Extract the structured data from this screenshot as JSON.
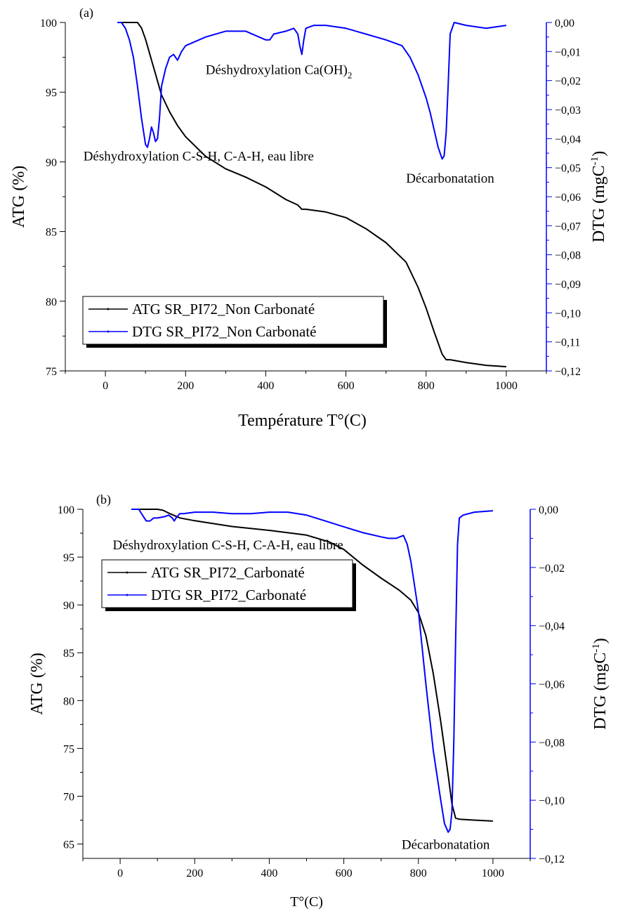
{
  "chart_data": [
    {
      "type": "line",
      "panel_label": "(a)",
      "xlabel": "Température T°(C)",
      "ylabel_left": "ATG (%)",
      "ylabel_right": "DTG (mgC",
      "ylabel_right_sup": "-1",
      "ylabel_right_close": ")",
      "xlim": [
        -100,
        1100
      ],
      "ylim_left": [
        75,
        100
      ],
      "ylim_right": [
        -0.12,
        0.0
      ],
      "xticks": [
        "0",
        "200",
        "400",
        "600",
        "800",
        "1000"
      ],
      "yticks_left": [
        "75",
        "80",
        "85",
        "90",
        "95",
        "100"
      ],
      "yticks_right": [
        "0,00",
        "-0,01",
        "-0,02",
        "-0,03",
        "-0,04",
        "-0,05",
        "-0,06",
        "-0,07",
        "-0,08",
        "-0,09",
        "-0,10",
        "-0,11",
        "-0,12"
      ],
      "legend": "bottom-left",
      "annotations": [
        {
          "text": "Déshydroxylation Ca(OH)",
          "sub": "2",
          "x": 250,
          "y": 96.3
        },
        {
          "text": "Déshydroxylation C-S-H, C-A-H, eau libre",
          "x": -55,
          "y": 90.1
        },
        {
          "text": "Décarbonatation",
          "x": 750,
          "y": 88.5
        }
      ],
      "series": [
        {
          "name": "ATG SR_PI72_Non Carbonaté",
          "axis": "left",
          "color": "#000000",
          "x": [
            30,
            80,
            90,
            100,
            120,
            140,
            160,
            180,
            200,
            250,
            300,
            350,
            400,
            450,
            480,
            490,
            500,
            550,
            600,
            650,
            700,
            750,
            780,
            800,
            820,
            840,
            850,
            860,
            900,
            950,
            1000
          ],
          "y": [
            100,
            100,
            99.6,
            98.8,
            96.8,
            94.8,
            93.6,
            92.6,
            91.8,
            90.4,
            89.5,
            88.9,
            88.2,
            87.3,
            86.9,
            86.6,
            86.6,
            86.4,
            86.0,
            85.2,
            84.2,
            82.8,
            81.0,
            79.5,
            77.8,
            76.2,
            75.8,
            75.8,
            75.6,
            75.4,
            75.3
          ]
        },
        {
          "name": "DTG SR_PI72_Non Carbonaté",
          "axis": "right",
          "color": "#0000ff",
          "x": [
            30,
            40,
            50,
            60,
            70,
            80,
            90,
            100,
            105,
            110,
            115,
            120,
            125,
            130,
            135,
            140,
            150,
            160,
            170,
            180,
            190,
            200,
            250,
            300,
            350,
            400,
            410,
            420,
            450,
            470,
            480,
            485,
            490,
            495,
            500,
            520,
            550,
            600,
            650,
            700,
            720,
            740,
            760,
            780,
            800,
            810,
            820,
            830,
            840,
            845,
            850,
            855,
            860,
            870,
            900,
            950,
            1000
          ],
          "y": [
            0.0,
            0.0,
            -0.002,
            -0.006,
            -0.012,
            -0.022,
            -0.033,
            -0.042,
            -0.043,
            -0.04,
            -0.036,
            -0.038,
            -0.041,
            -0.04,
            -0.033,
            -0.022,
            -0.016,
            -0.012,
            -0.011,
            -0.013,
            -0.01,
            -0.008,
            -0.005,
            -0.003,
            -0.003,
            -0.006,
            -0.006,
            -0.004,
            -0.003,
            -0.002,
            -0.004,
            -0.008,
            -0.011,
            -0.006,
            -0.002,
            -0.001,
            -0.001,
            -0.002,
            -0.004,
            -0.006,
            -0.007,
            -0.008,
            -0.012,
            -0.018,
            -0.026,
            -0.031,
            -0.037,
            -0.043,
            -0.047,
            -0.046,
            -0.038,
            -0.022,
            -0.004,
            0.0,
            -0.001,
            -0.002,
            -0.001
          ]
        }
      ]
    },
    {
      "type": "line",
      "panel_label": "(b)",
      "xlabel": "T°(C)",
      "ylabel_left": "ATG (%)",
      "ylabel_right": "DTG (mgC",
      "ylabel_right_sup": "-1",
      "ylabel_right_close": ")",
      "xlim": [
        -100,
        1100
      ],
      "ylim_left": [
        63.5,
        100
      ],
      "ylim_right": [
        -0.12,
        0.0
      ],
      "xticks": [
        "0",
        "200",
        "400",
        "600",
        "800",
        "1000"
      ],
      "yticks_left": [
        "65",
        "70",
        "75",
        "80",
        "85",
        "90",
        "95",
        "100"
      ],
      "yticks_right": [
        "0,00",
        "-0,02",
        "-0,04",
        "-0,06",
        "-0,08",
        "-0,10",
        "-0,12"
      ],
      "legend": "bottom-left",
      "annotations": [
        {
          "text": "Déshydroxylation C-S-H, C-A-H, eau libre",
          "x": -20,
          "y": 95.8
        },
        {
          "text": "Décarbonatation",
          "x": 755,
          "y": 64.5
        }
      ],
      "series": [
        {
          "name": "ATG SR_PI72_Carbonaté",
          "axis": "left",
          "color": "#000000",
          "x": [
            30,
            100,
            115,
            130,
            160,
            200,
            300,
            400,
            500,
            560,
            600,
            650,
            700,
            750,
            780,
            800,
            820,
            840,
            860,
            880,
            890,
            900,
            910,
            950,
            1000
          ],
          "y": [
            100,
            100,
            99.9,
            99.6,
            99.1,
            98.8,
            98.2,
            97.8,
            97.3,
            96.6,
            95.8,
            94.2,
            92.8,
            91.5,
            90.5,
            89.2,
            86.8,
            82.8,
            77.8,
            72.2,
            69.2,
            67.7,
            67.6,
            67.5,
            67.4
          ]
        },
        {
          "name": "DTG SR_PI72_Carbonaté",
          "axis": "right",
          "color": "#0000ff",
          "x": [
            30,
            50,
            60,
            70,
            80,
            90,
            100,
            120,
            130,
            140,
            145,
            150,
            160,
            170,
            200,
            250,
            300,
            350,
            400,
            450,
            500,
            550,
            600,
            650,
            700,
            720,
            740,
            750,
            760,
            770,
            780,
            800,
            820,
            840,
            860,
            870,
            880,
            885,
            890,
            895,
            900,
            905,
            910,
            920,
            950,
            1000
          ],
          "y": [
            0.0,
            0.0,
            -0.002,
            -0.004,
            -0.004,
            -0.003,
            -0.003,
            -0.0025,
            -0.002,
            -0.003,
            -0.004,
            -0.003,
            -0.0015,
            -0.0015,
            -0.001,
            -0.001,
            -0.0015,
            -0.0015,
            -0.001,
            -0.001,
            -0.002,
            -0.004,
            -0.006,
            -0.008,
            -0.0095,
            -0.01,
            -0.01,
            -0.0095,
            -0.009,
            -0.012,
            -0.018,
            -0.035,
            -0.06,
            -0.083,
            -0.1,
            -0.108,
            -0.111,
            -0.11,
            -0.104,
            -0.08,
            -0.045,
            -0.012,
            -0.003,
            -0.002,
            -0.001,
            -0.0005
          ]
        }
      ]
    }
  ]
}
